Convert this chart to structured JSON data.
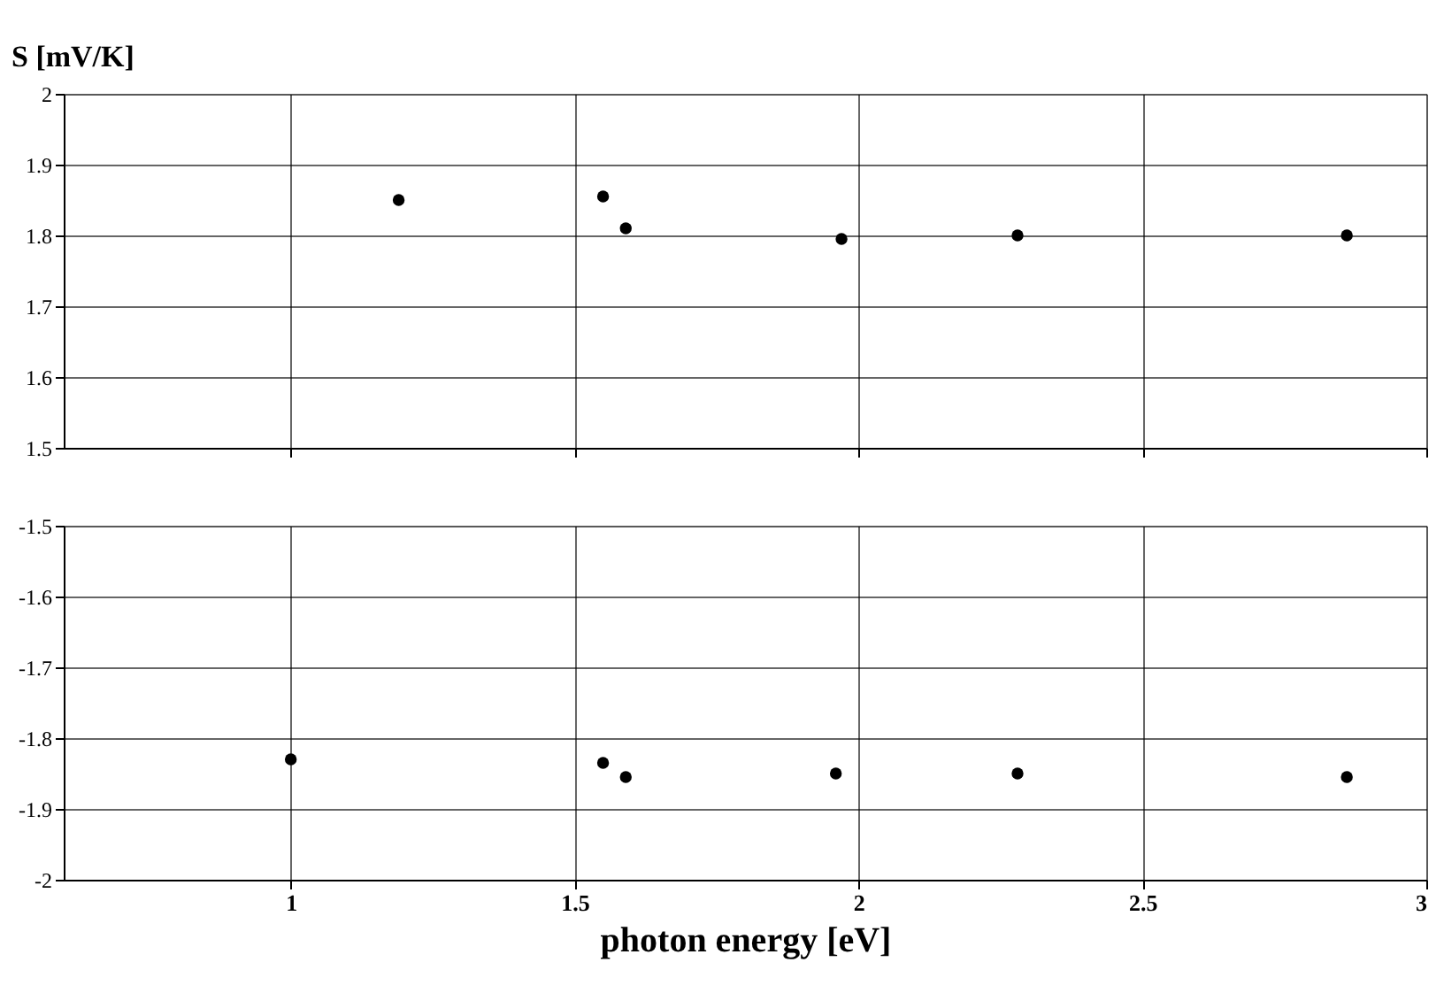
{
  "chart_data": [
    {
      "type": "scatter",
      "ylabel": "S [mV/K]",
      "x": [
        1.19,
        1.55,
        1.59,
        1.97,
        2.28,
        2.86
      ],
      "series": [
        {
          "color": "#000000",
          "values": [
            1.85,
            1.855,
            1.81,
            1.795,
            1.8,
            1.8
          ]
        }
      ],
      "xlim": [
        0.6,
        3
      ],
      "xticks": [
        1,
        1.5,
        2,
        2.5,
        3
      ],
      "ylim": [
        1.5,
        2
      ],
      "yticks": [
        1.5,
        1.6,
        1.7,
        1.8,
        1.9,
        2
      ],
      "grid": true,
      "marker": "circle",
      "tick_labels": "y"
    },
    {
      "type": "scatter",
      "xlabel": "photon energy [eV]",
      "x": [
        1.0,
        1.55,
        1.59,
        1.96,
        2.28,
        2.86
      ],
      "series": [
        {
          "color": "#000000",
          "values": [
            -1.83,
            -1.835,
            -1.855,
            -1.85,
            -1.85,
            -1.855
          ]
        }
      ],
      "xlim": [
        0.6,
        3
      ],
      "xticks": [
        1,
        1.5,
        2,
        2.5,
        3
      ],
      "ylim": [
        -2,
        -1.5
      ],
      "yticks": [
        -2,
        -1.9,
        -1.8,
        -1.7,
        -1.6,
        -1.5
      ],
      "grid": true,
      "marker": "circle"
    }
  ]
}
